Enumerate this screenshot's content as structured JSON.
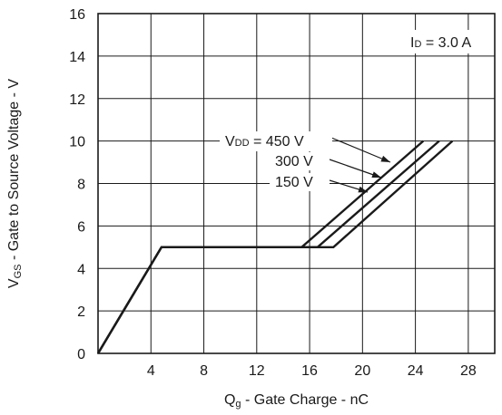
{
  "chart_data": {
    "type": "line",
    "title": "",
    "xlabel": {
      "main": "Q",
      "sub": "g",
      "rest": " - Gate Charge - nC"
    },
    "ylabel": {
      "main": "V",
      "sub": "GS",
      "rest": " - Gate to Source Voltage - V"
    },
    "xlim": [
      0,
      30
    ],
    "ylim": [
      0,
      16
    ],
    "xticks": [
      4,
      8,
      12,
      16,
      20,
      24,
      28
    ],
    "yticks": [
      0,
      2,
      4,
      6,
      8,
      10,
      12,
      14,
      16
    ],
    "xtick_labels": [
      "4",
      "8",
      "12",
      "16",
      "20",
      "24",
      "28"
    ],
    "ytick_labels": [
      "0",
      "2",
      "4",
      "6",
      "8",
      "10",
      "12",
      "14",
      "16"
    ],
    "grid": true,
    "annotation": {
      "main": "I",
      "sub": "D",
      "rest": " = 3.0 A"
    },
    "series": [
      {
        "name": "V_DD = 450 V",
        "x": [
          0,
          4.8,
          15.4,
          24.6
        ],
        "y": [
          0,
          5,
          5,
          10
        ]
      },
      {
        "name": "300 V",
        "x": [
          0,
          4.8,
          16.6,
          25.8
        ],
        "y": [
          0,
          5,
          5,
          10
        ]
      },
      {
        "name": "150 V",
        "x": [
          0,
          4.8,
          17.8,
          26.8
        ],
        "y": [
          0,
          5,
          5,
          10
        ]
      }
    ],
    "series_labels": [
      {
        "main": "V",
        "sub": "DD",
        "rest": " = 450 V"
      },
      {
        "main": "300 V",
        "sub": "",
        "rest": ""
      },
      {
        "main": "150 V",
        "sub": "",
        "rest": ""
      }
    ],
    "line_color": "#1a1a1a",
    "grid_color": "#1a1a1a"
  }
}
